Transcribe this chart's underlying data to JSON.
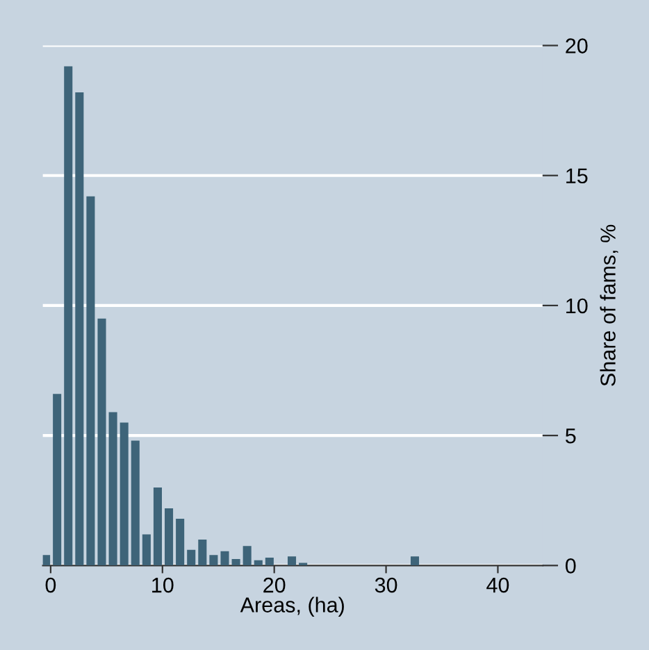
{
  "chart_data": {
    "type": "histogram",
    "xlabel": "Areas, (ha)",
    "ylabel": "Share of fams, %",
    "bins": [
      -0.8,
      0.2,
      1.2,
      2.2,
      3.2,
      4.2,
      5.2,
      6.2,
      7.2,
      8.2,
      9.2,
      10.2,
      11.2,
      12.2,
      13.2,
      14.2,
      15.2,
      16.2,
      17.2,
      18.2,
      19.2,
      20.2,
      21.2,
      22.2,
      23.2,
      24.2,
      25.2,
      26.2,
      27.2,
      28.2,
      29.2,
      30.2,
      31.2,
      32.2,
      33.2
    ],
    "values": [
      0.4,
      6.6,
      19.2,
      18.2,
      14.2,
      9.5,
      5.9,
      5.5,
      4.8,
      1.2,
      3.0,
      2.2,
      1.8,
      0.6,
      1.0,
      0.4,
      0.55,
      0.25,
      0.75,
      0.2,
      0.3,
      0,
      0.35,
      0.1,
      0,
      0,
      0,
      0,
      0,
      0,
      0,
      0,
      0,
      0.35
    ],
    "color": "#3e6479",
    "xlim": [
      -0.7,
      44
    ],
    "xticks": [
      0,
      10,
      20,
      30,
      40
    ],
    "ylim": [
      0,
      20
    ],
    "yticks": [
      0,
      5,
      10,
      15,
      20
    ],
    "grid": "y"
  }
}
